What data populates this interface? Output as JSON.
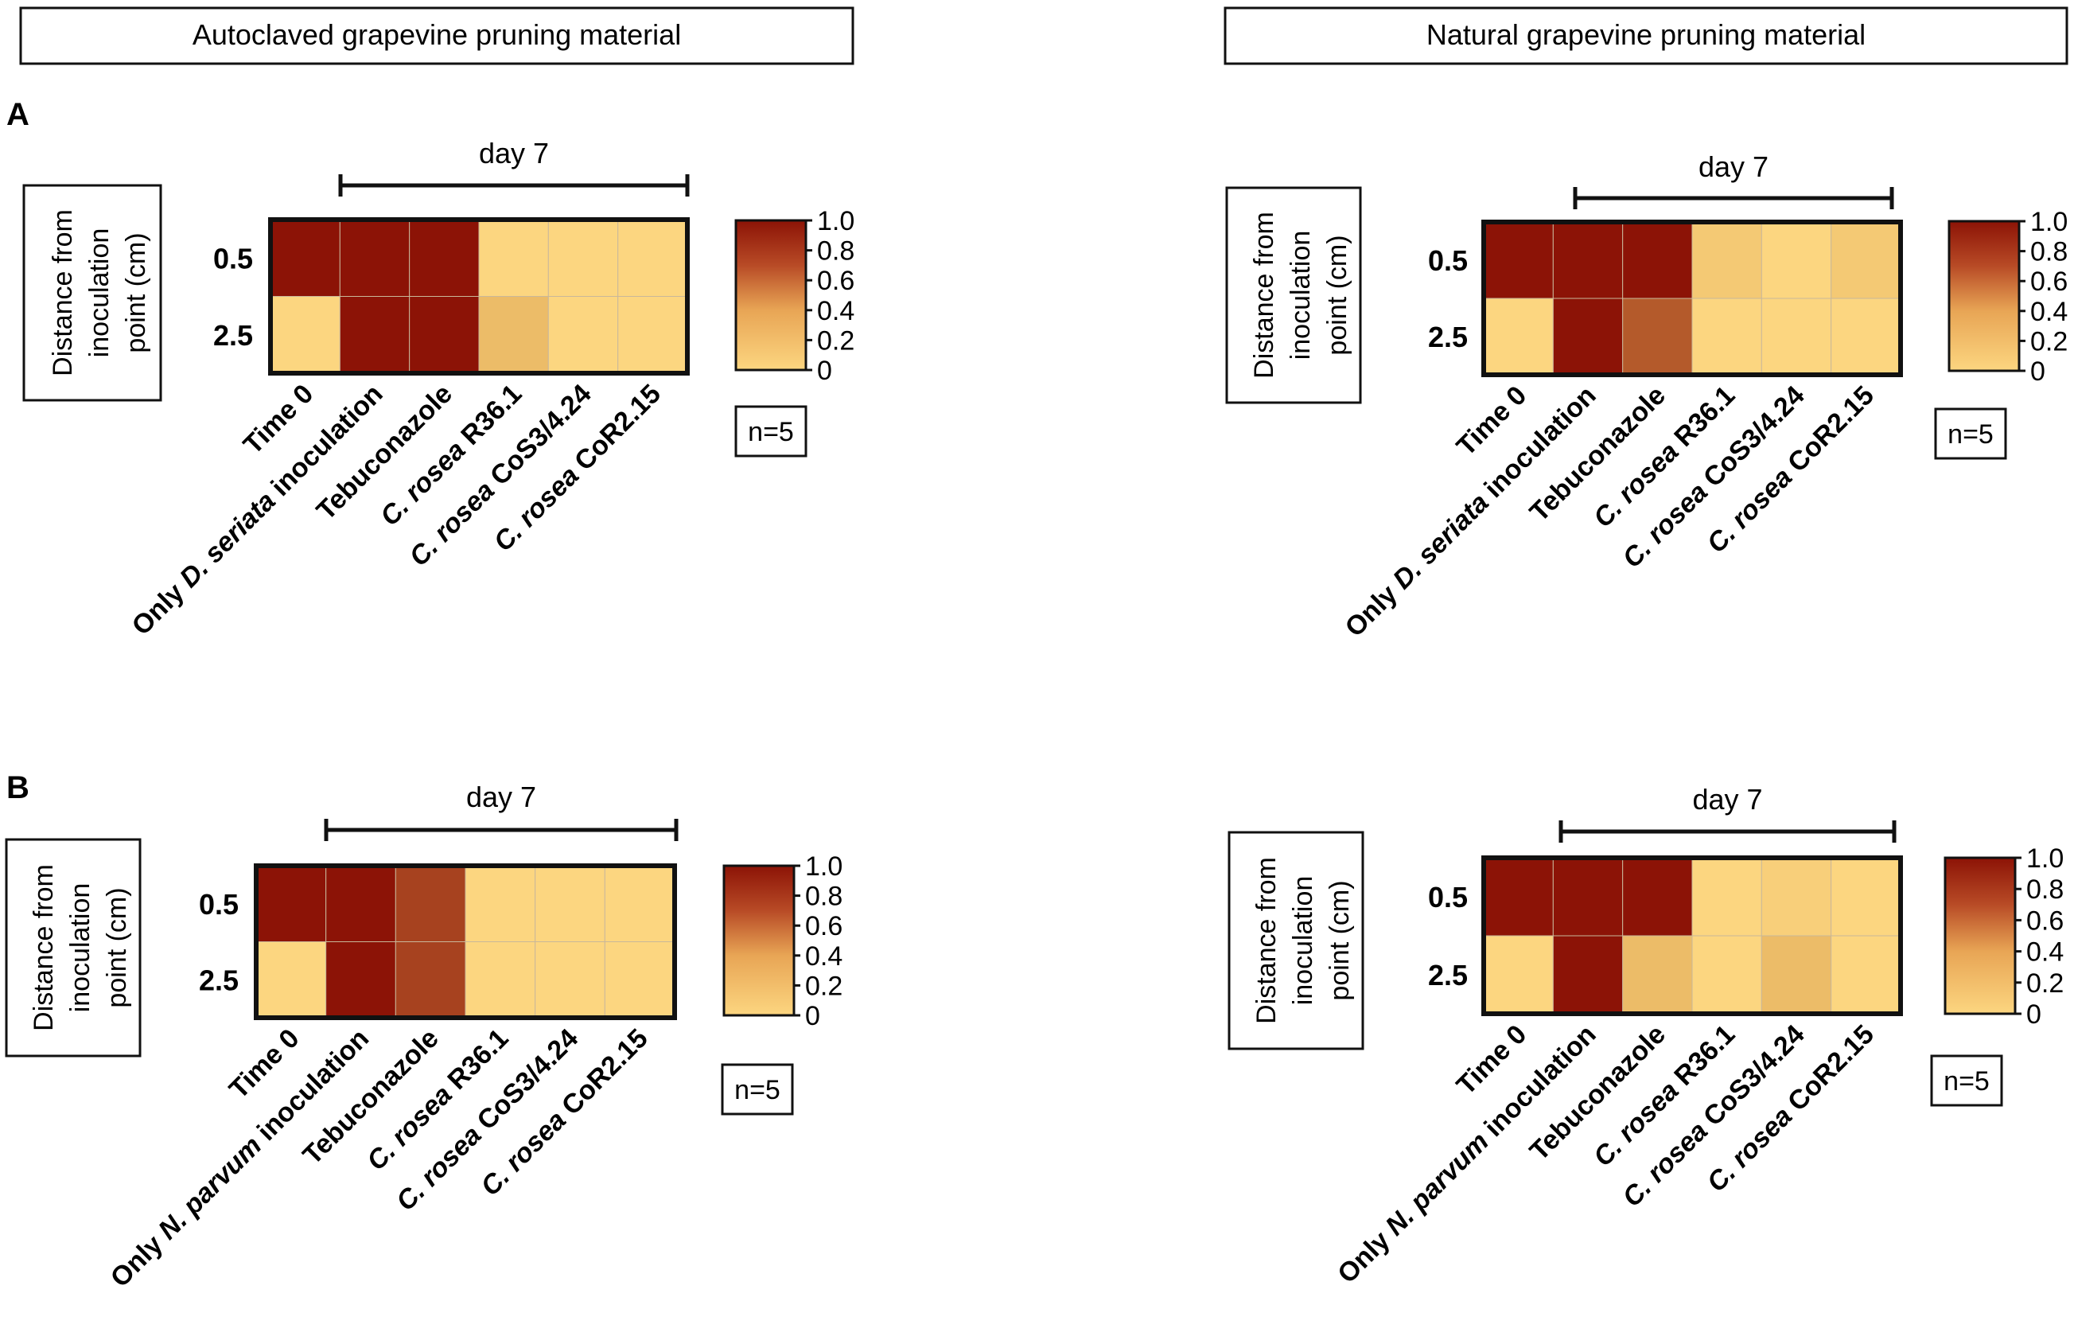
{
  "headers": {
    "left": "Autoclaved grapevine pruning material",
    "right": "Natural grapevine pruning material"
  },
  "panel_labels": {
    "A": "A",
    "B": "B"
  },
  "common": {
    "day_label": "day 7",
    "ylabel_lines": [
      "Distance from",
      "inoculation",
      "point (cm)"
    ],
    "colorbar_ticks": [
      "1.0",
      "0.8",
      "0.6",
      "0.4",
      "0.2",
      "0"
    ],
    "n_label": "n=5",
    "row_labels": [
      "0.5",
      "2.5"
    ]
  },
  "colors": {
    "low": "#fcd680",
    "mid": "#dca150",
    "high": "#8c1306",
    "frame": "#111111",
    "box_stroke": "#111111"
  },
  "chart_data": [
    {
      "type": "heatmap",
      "panel": "A",
      "material": "Autoclaved grapevine pruning material",
      "pathogen": "D. seriata",
      "rows": [
        "0.5",
        "2.5"
      ],
      "ylabel": "Distance from inoculation point (cm)",
      "columns": [
        {
          "prefix": "",
          "italic": "",
          "suffix": "Time 0"
        },
        {
          "prefix": "Only ",
          "italic": "D. seriata",
          "suffix": " inoculation"
        },
        {
          "prefix": "",
          "italic": "",
          "suffix": "Tebuconazole"
        },
        {
          "prefix": "",
          "italic": "C. rosea",
          "suffix": " R36.1"
        },
        {
          "prefix": "",
          "italic": "C. rosea",
          "suffix": " CoS3/4.24"
        },
        {
          "prefix": "",
          "italic": "C. rosea",
          "suffix": " CoR2.15"
        }
      ],
      "values": [
        [
          1.0,
          1.0,
          1.0,
          0.0,
          0.0,
          0.0
        ],
        [
          0.0,
          1.0,
          1.0,
          0.2,
          0.0,
          0.0
        ]
      ],
      "vlim": [
        0,
        1
      ],
      "day7_span": [
        1,
        5
      ],
      "n": 5
    },
    {
      "type": "heatmap",
      "panel": "A",
      "material": "Natural grapevine pruning material",
      "pathogen": "D. seriata",
      "rows": [
        "0.5",
        "2.5"
      ],
      "ylabel": "Distance from inoculation point (cm)",
      "columns": [
        {
          "prefix": "",
          "italic": "",
          "suffix": "Time 0"
        },
        {
          "prefix": "Only ",
          "italic": "D. seriata",
          "suffix": " inoculation"
        },
        {
          "prefix": "",
          "italic": "",
          "suffix": "Tebuconazole"
        },
        {
          "prefix": "",
          "italic": "C. rosea",
          "suffix": " R36.1"
        },
        {
          "prefix": "",
          "italic": "C. rosea",
          "suffix": " CoS3/4.24"
        },
        {
          "prefix": "",
          "italic": "C. rosea",
          "suffix": " CoR2.15"
        }
      ],
      "values": [
        [
          1.0,
          1.0,
          1.0,
          0.1,
          0.0,
          0.1
        ],
        [
          0.0,
          1.0,
          0.7,
          0.0,
          0.0,
          0.0
        ]
      ],
      "vlim": [
        0,
        1
      ],
      "day7_span": [
        1,
        5
      ],
      "n": 5
    },
    {
      "type": "heatmap",
      "panel": "B",
      "material": "Autoclaved grapevine pruning material",
      "pathogen": "N. parvum",
      "rows": [
        "0.5",
        "2.5"
      ],
      "ylabel": "Distance from inoculation point (cm)",
      "columns": [
        {
          "prefix": "",
          "italic": "",
          "suffix": "Time 0"
        },
        {
          "prefix": "Only ",
          "italic": "N. parvum",
          "suffix": " inoculation"
        },
        {
          "prefix": "",
          "italic": "",
          "suffix": "Tebuconazole"
        },
        {
          "prefix": "",
          "italic": "C. rosea",
          "suffix": " R36.1"
        },
        {
          "prefix": "",
          "italic": "C. rosea",
          "suffix": " CoS3/4.24"
        },
        {
          "prefix": "",
          "italic": "C. rosea",
          "suffix": " CoR2.15"
        }
      ],
      "values": [
        [
          1.0,
          1.0,
          0.8,
          0.0,
          0.0,
          0.0
        ],
        [
          0.0,
          1.0,
          0.8,
          0.0,
          0.0,
          0.0
        ]
      ],
      "vlim": [
        0,
        1
      ],
      "day7_span": [
        1,
        5
      ],
      "n": 5
    },
    {
      "type": "heatmap",
      "panel": "B",
      "material": "Natural grapevine pruning material",
      "pathogen": "N. parvum",
      "rows": [
        "0.5",
        "2.5"
      ],
      "ylabel": "Distance from inoculation point (cm)",
      "columns": [
        {
          "prefix": "",
          "italic": "",
          "suffix": "Time 0"
        },
        {
          "prefix": "Only ",
          "italic": "N. parvum",
          "suffix": " inoculation"
        },
        {
          "prefix": "",
          "italic": "",
          "suffix": "Tebuconazole"
        },
        {
          "prefix": "",
          "italic": "C. rosea",
          "suffix": " R36.1"
        },
        {
          "prefix": "",
          "italic": "C. rosea",
          "suffix": " CoS3/4.24"
        },
        {
          "prefix": "",
          "italic": "C. rosea",
          "suffix": " CoR2.15"
        }
      ],
      "values": [
        [
          1.0,
          1.0,
          1.0,
          0.0,
          0.05,
          0.0
        ],
        [
          0.0,
          1.0,
          0.2,
          0.0,
          0.2,
          0.0
        ]
      ],
      "vlim": [
        0,
        1
      ],
      "day7_span": [
        1,
        5
      ],
      "n": 5
    }
  ]
}
